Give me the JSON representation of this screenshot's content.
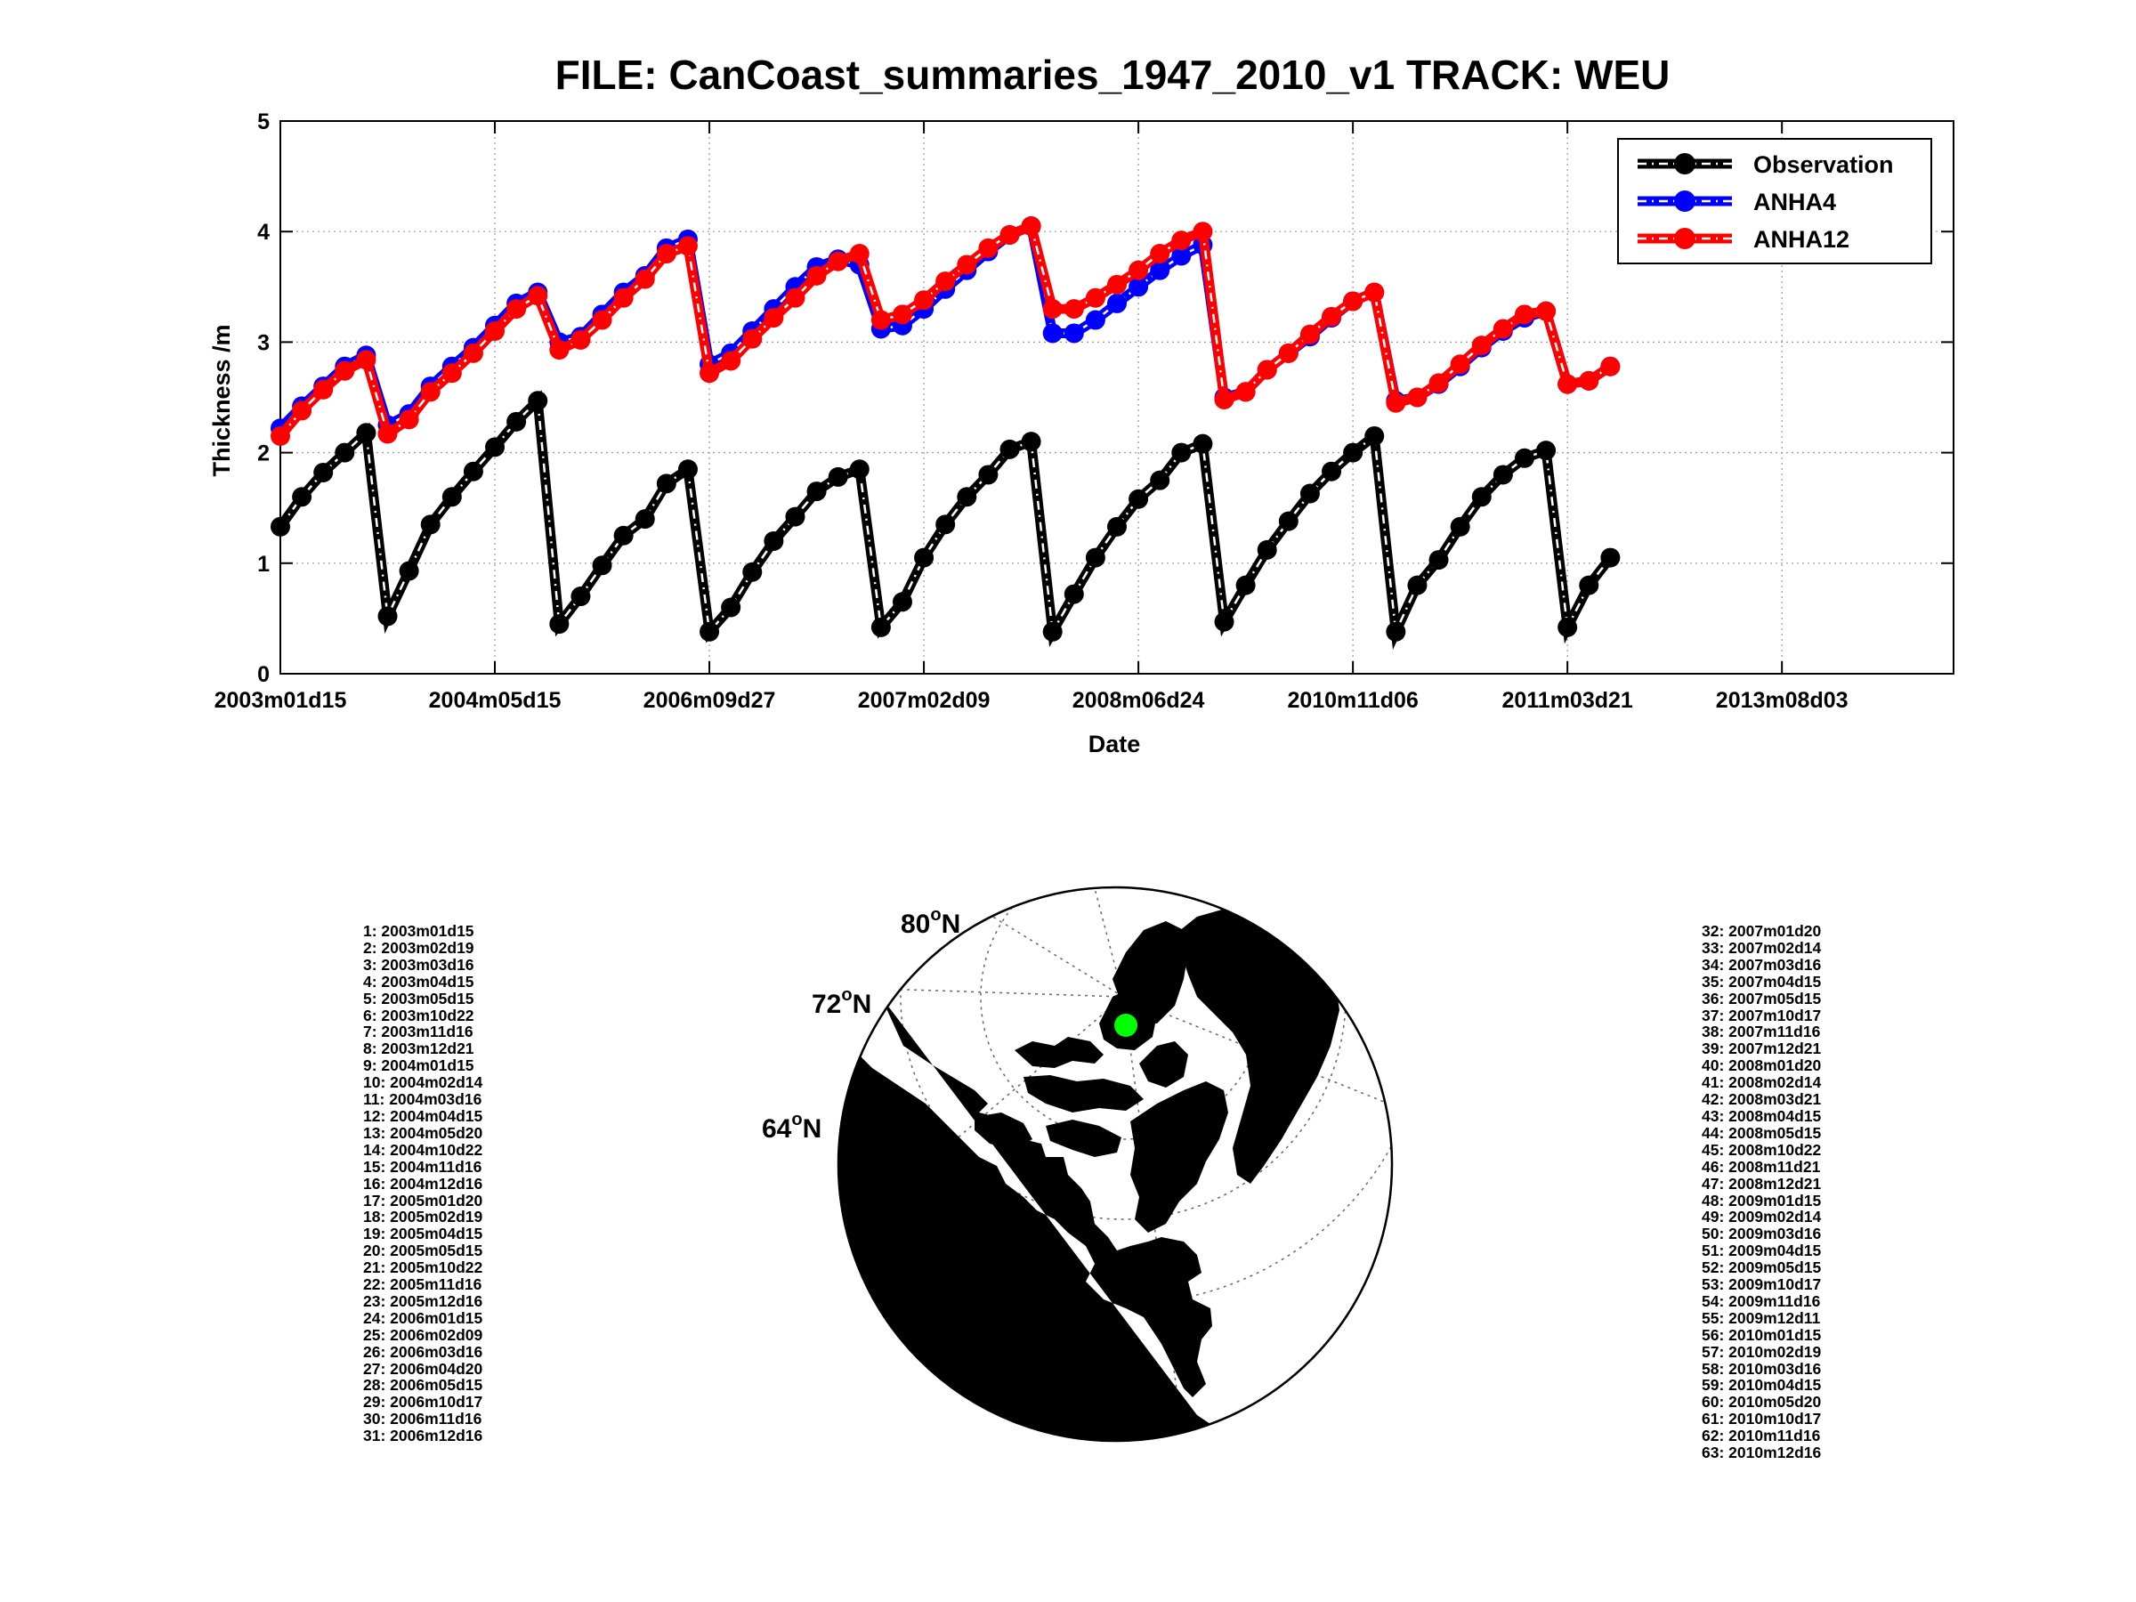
{
  "chart_data": {
    "type": "line",
    "title": "FILE: CanCoast_summaries_1947_2010_v1 TRACK: WEU",
    "xlabel": "Date",
    "ylabel": "Thickness /m",
    "ylim": [
      0,
      5
    ],
    "yticks": [
      0,
      1,
      2,
      3,
      4,
      5
    ],
    "xlim": [
      0,
      78
    ],
    "xticks": [
      {
        "x": 0,
        "label": "2003m01d15"
      },
      {
        "x": 10,
        "label": "2004m05d15"
      },
      {
        "x": 20,
        "label": "2006m09d27"
      },
      {
        "x": 30,
        "label": "2007m02d09"
      },
      {
        "x": 40,
        "label": "2008m06d24"
      },
      {
        "x": 50,
        "label": "2010m11d06"
      },
      {
        "x": 60,
        "label": "2011m03d21"
      },
      {
        "x": 70,
        "label": "2013m08d03"
      }
    ],
    "grid": true,
    "legend_position": "top-right",
    "series": [
      {
        "name": "Observation",
        "color": "#000000",
        "values": [
          1.33,
          1.6,
          1.82,
          2.0,
          2.18,
          0.52,
          0.93,
          1.35,
          1.6,
          1.83,
          2.05,
          2.28,
          2.47,
          0.45,
          0.7,
          0.98,
          1.25,
          1.4,
          1.72,
          1.85,
          0.38,
          0.6,
          0.92,
          1.2,
          1.42,
          1.65,
          1.78,
          1.85,
          0.42,
          0.65,
          1.05,
          1.35,
          1.6,
          1.8,
          2.03,
          2.1,
          0.38,
          0.72,
          1.05,
          1.33,
          1.58,
          1.75,
          2.0,
          2.08,
          0.47,
          0.8,
          1.12,
          1.38,
          1.63,
          1.83,
          2.0,
          2.15,
          0.38,
          0.8,
          1.03,
          1.33,
          1.6,
          1.8,
          1.95,
          2.02,
          0.42,
          0.8,
          1.05
        ]
      },
      {
        "name": "ANHA4",
        "color": "#0000ff",
        "values": [
          2.22,
          2.42,
          2.6,
          2.78,
          2.88,
          2.25,
          2.35,
          2.6,
          2.78,
          2.95,
          3.15,
          3.35,
          3.45,
          3.0,
          3.05,
          3.25,
          3.45,
          3.6,
          3.85,
          3.93,
          2.8,
          2.9,
          3.1,
          3.3,
          3.5,
          3.68,
          3.75,
          3.7,
          3.12,
          3.15,
          3.3,
          3.48,
          3.65,
          3.82,
          3.97,
          4.05,
          3.08,
          3.08,
          3.2,
          3.35,
          3.5,
          3.65,
          3.78,
          3.88,
          2.5,
          2.55,
          2.75,
          2.9,
          3.05,
          3.22,
          3.37,
          3.45,
          2.47,
          2.5,
          2.62,
          2.78,
          2.95,
          3.1,
          3.22,
          3.28,
          2.62,
          2.65,
          2.78
        ]
      },
      {
        "name": "ANHA12",
        "color": "#ff0000",
        "values": [
          2.15,
          2.38,
          2.57,
          2.74,
          2.84,
          2.17,
          2.3,
          2.55,
          2.72,
          2.9,
          3.1,
          3.3,
          3.42,
          2.93,
          3.02,
          3.2,
          3.4,
          3.57,
          3.8,
          3.87,
          2.72,
          2.83,
          3.03,
          3.22,
          3.4,
          3.6,
          3.73,
          3.8,
          3.2,
          3.25,
          3.38,
          3.55,
          3.7,
          3.85,
          3.97,
          4.05,
          3.3,
          3.3,
          3.4,
          3.52,
          3.65,
          3.8,
          3.92,
          4.0,
          2.48,
          2.55,
          2.75,
          2.9,
          3.07,
          3.23,
          3.37,
          3.45,
          2.45,
          2.5,
          2.63,
          2.8,
          2.97,
          3.12,
          3.25,
          3.28,
          2.62,
          2.65,
          2.78
        ]
      }
    ]
  },
  "map": {
    "lat_labels": [
      {
        "deg": "80",
        "sup": "o",
        "hem": "N"
      },
      {
        "deg": "72",
        "sup": "o",
        "hem": "N"
      },
      {
        "deg": "64",
        "sup": "o",
        "hem": "N"
      }
    ],
    "marker_color": "#00ff00"
  },
  "date_list_left": [
    "1: 2003m01d15",
    "2: 2003m02d19",
    "3: 2003m03d16",
    "4: 2003m04d15",
    "5: 2003m05d15",
    "6: 2003m10d22",
    "7: 2003m11d16",
    "8: 2003m12d21",
    "9: 2004m01d15",
    "10: 2004m02d14",
    "11: 2004m03d16",
    "12: 2004m04d15",
    "13: 2004m05d20",
    "14: 2004m10d22",
    "15: 2004m11d16",
    "16: 2004m12d16",
    "17: 2005m01d20",
    "18: 2005m02d19",
    "19: 2005m04d15",
    "20: 2005m05d15",
    "21: 2005m10d22",
    "22: 2005m11d16",
    "23: 2005m12d16",
    "24: 2006m01d15",
    "25: 2006m02d09",
    "26: 2006m03d16",
    "27: 2006m04d20",
    "28: 2006m05d15",
    "29: 2006m10d17",
    "30: 2006m11d16",
    "31: 2006m12d16"
  ],
  "date_list_right": [
    "32: 2007m01d20",
    "33: 2007m02d14",
    "34: 2007m03d16",
    "35: 2007m04d15",
    "36: 2007m05d15",
    "37: 2007m10d17",
    "38: 2007m11d16",
    "39: 2007m12d21",
    "40: 2008m01d20",
    "41: 2008m02d14",
    "42: 2008m03d21",
    "43: 2008m04d15",
    "44: 2008m05d15",
    "45: 2008m10d22",
    "46: 2008m11d21",
    "47: 2008m12d21",
    "48: 2009m01d15",
    "49: 2009m02d14",
    "50: 2009m03d16",
    "51: 2009m04d15",
    "52: 2009m05d15",
    "53: 2009m10d17",
    "54: 2009m11d16",
    "55: 2009m12d11",
    "56: 2010m01d15",
    "57: 2010m02d19",
    "58: 2010m03d16",
    "59: 2010m04d15",
    "60: 2010m05d20",
    "61: 2010m10d17",
    "62: 2010m11d16",
    "63: 2010m12d16"
  ]
}
